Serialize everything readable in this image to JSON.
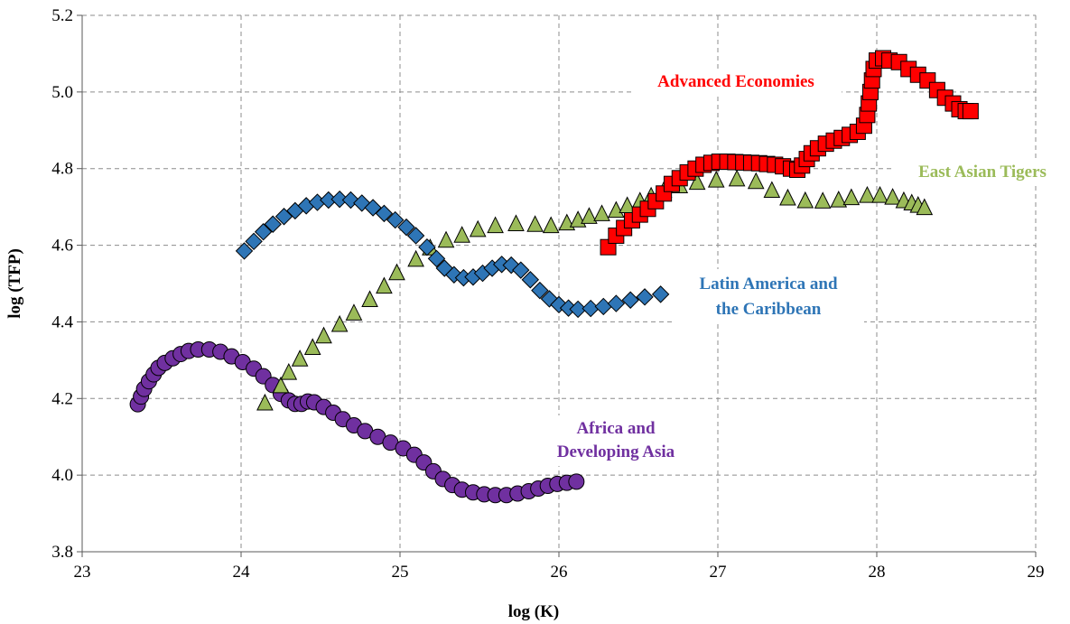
{
  "chart_data": {
    "type": "scatter",
    "title": "",
    "xlabel": "log (K)",
    "ylabel": "log (TFP)",
    "xlim": [
      23,
      29
    ],
    "ylim": [
      3.8,
      5.2
    ],
    "xticks": [
      "23",
      "24",
      "25",
      "26",
      "27",
      "28",
      "29"
    ],
    "yticks": [
      "3.8",
      "4.0",
      "4.2",
      "4.4",
      "4.6",
      "4.8",
      "5.0",
      "5.2"
    ],
    "grid": true,
    "legend": "none (series labelled directly on the plot)",
    "series": [
      {
        "name": "Advanced Economies",
        "label_lines": [
          "Advanced Economies"
        ],
        "marker": "square",
        "color": "#ff0000",
        "points": [
          [
            26.31,
            4.595
          ],
          [
            26.36,
            4.625
          ],
          [
            26.41,
            4.645
          ],
          [
            26.46,
            4.665
          ],
          [
            26.51,
            4.68
          ],
          [
            26.56,
            4.695
          ],
          [
            26.61,
            4.715
          ],
          [
            26.66,
            4.735
          ],
          [
            26.71,
            4.76
          ],
          [
            26.76,
            4.775
          ],
          [
            26.81,
            4.79
          ],
          [
            26.86,
            4.8
          ],
          [
            26.91,
            4.81
          ],
          [
            26.96,
            4.815
          ],
          [
            27.01,
            4.818
          ],
          [
            27.06,
            4.818
          ],
          [
            27.11,
            4.817
          ],
          [
            27.16,
            4.816
          ],
          [
            27.21,
            4.815
          ],
          [
            27.26,
            4.814
          ],
          [
            27.31,
            4.812
          ],
          [
            27.36,
            4.81
          ],
          [
            27.41,
            4.806
          ],
          [
            27.46,
            4.8
          ],
          [
            27.5,
            4.797
          ],
          [
            27.53,
            4.808
          ],
          [
            27.56,
            4.825
          ],
          [
            27.59,
            4.84
          ],
          [
            27.63,
            4.853
          ],
          [
            27.68,
            4.865
          ],
          [
            27.73,
            4.873
          ],
          [
            27.78,
            4.88
          ],
          [
            27.83,
            4.888
          ],
          [
            27.88,
            4.896
          ],
          [
            27.92,
            4.912
          ],
          [
            27.94,
            4.94
          ],
          [
            27.95,
            4.97
          ],
          [
            27.96,
            5.0
          ],
          [
            27.97,
            5.03
          ],
          [
            27.98,
            5.06
          ],
          [
            28.0,
            5.082
          ],
          [
            28.04,
            5.088
          ],
          [
            28.08,
            5.082
          ],
          [
            28.14,
            5.078
          ],
          [
            28.2,
            5.06
          ],
          [
            28.26,
            5.045
          ],
          [
            28.32,
            5.03
          ],
          [
            28.38,
            5.005
          ],
          [
            28.43,
            4.985
          ],
          [
            28.48,
            4.97
          ],
          [
            28.52,
            4.955
          ],
          [
            28.56,
            4.95
          ],
          [
            28.59,
            4.95
          ]
        ]
      },
      {
        "name": "East Asian Tigers",
        "label_lines": [
          "East Asian Tigers"
        ],
        "marker": "triangle",
        "color": "#9bbb59",
        "points": [
          [
            24.15,
            4.19
          ],
          [
            24.25,
            4.235
          ],
          [
            24.3,
            4.27
          ],
          [
            24.37,
            4.305
          ],
          [
            24.45,
            4.335
          ],
          [
            24.52,
            4.365
          ],
          [
            24.62,
            4.395
          ],
          [
            24.71,
            4.425
          ],
          [
            24.81,
            4.46
          ],
          [
            24.9,
            4.495
          ],
          [
            24.98,
            4.53
          ],
          [
            25.1,
            4.565
          ],
          [
            25.19,
            4.595
          ],
          [
            25.29,
            4.615
          ],
          [
            25.39,
            4.628
          ],
          [
            25.49,
            4.643
          ],
          [
            25.6,
            4.653
          ],
          [
            25.73,
            4.658
          ],
          [
            25.85,
            4.656
          ],
          [
            25.95,
            4.653
          ],
          [
            26.05,
            4.66
          ],
          [
            26.12,
            4.668
          ],
          [
            26.19,
            4.677
          ],
          [
            26.27,
            4.684
          ],
          [
            26.36,
            4.693
          ],
          [
            26.43,
            4.705
          ],
          [
            26.51,
            4.717
          ],
          [
            26.58,
            4.73
          ],
          [
            26.66,
            4.745
          ],
          [
            26.76,
            4.757
          ],
          [
            26.87,
            4.766
          ],
          [
            26.99,
            4.772
          ],
          [
            27.12,
            4.775
          ],
          [
            27.24,
            4.768
          ],
          [
            27.34,
            4.745
          ],
          [
            27.44,
            4.725
          ],
          [
            27.55,
            4.718
          ],
          [
            27.66,
            4.717
          ],
          [
            27.76,
            4.72
          ],
          [
            27.84,
            4.726
          ],
          [
            27.94,
            4.732
          ],
          [
            28.02,
            4.732
          ],
          [
            28.1,
            4.727
          ],
          [
            28.17,
            4.718
          ],
          [
            28.22,
            4.712
          ],
          [
            28.26,
            4.706
          ],
          [
            28.3,
            4.7
          ]
        ]
      },
      {
        "name": "Latin America and the Caribbean",
        "label_lines": [
          "Latin America and",
          "the Caribbean"
        ],
        "marker": "diamond",
        "color": "#2e75b6",
        "points": [
          [
            24.02,
            4.585
          ],
          [
            24.08,
            4.61
          ],
          [
            24.14,
            4.635
          ],
          [
            24.2,
            4.655
          ],
          [
            24.27,
            4.675
          ],
          [
            24.34,
            4.69
          ],
          [
            24.41,
            4.703
          ],
          [
            24.48,
            4.712
          ],
          [
            24.55,
            4.718
          ],
          [
            24.62,
            4.72
          ],
          [
            24.69,
            4.718
          ],
          [
            24.76,
            4.71
          ],
          [
            24.83,
            4.698
          ],
          [
            24.9,
            4.683
          ],
          [
            24.97,
            4.666
          ],
          [
            25.04,
            4.647
          ],
          [
            25.1,
            4.625
          ],
          [
            25.17,
            4.595
          ],
          [
            25.23,
            4.565
          ],
          [
            25.28,
            4.54
          ],
          [
            25.34,
            4.523
          ],
          [
            25.4,
            4.515
          ],
          [
            25.46,
            4.517
          ],
          [
            25.52,
            4.527
          ],
          [
            25.58,
            4.54
          ],
          [
            25.64,
            4.55
          ],
          [
            25.7,
            4.548
          ],
          [
            25.76,
            4.535
          ],
          [
            25.82,
            4.51
          ],
          [
            25.88,
            4.482
          ],
          [
            25.94,
            4.46
          ],
          [
            26.0,
            4.445
          ],
          [
            26.06,
            4.436
          ],
          [
            26.12,
            4.433
          ],
          [
            26.2,
            4.435
          ],
          [
            26.28,
            4.44
          ],
          [
            26.36,
            4.448
          ],
          [
            26.45,
            4.457
          ],
          [
            26.54,
            4.465
          ],
          [
            26.64,
            4.472
          ]
        ]
      },
      {
        "name": "Africa and Developing Asia",
        "label_lines": [
          "Africa and",
          "Developing Asia"
        ],
        "marker": "circle",
        "color": "#7030a0",
        "points": [
          [
            23.35,
            4.185
          ],
          [
            23.37,
            4.205
          ],
          [
            23.39,
            4.225
          ],
          [
            23.42,
            4.245
          ],
          [
            23.45,
            4.263
          ],
          [
            23.48,
            4.28
          ],
          [
            23.52,
            4.293
          ],
          [
            23.57,
            4.305
          ],
          [
            23.62,
            4.316
          ],
          [
            23.67,
            4.324
          ],
          [
            23.73,
            4.328
          ],
          [
            23.8,
            4.328
          ],
          [
            23.87,
            4.322
          ],
          [
            23.94,
            4.31
          ],
          [
            24.01,
            4.295
          ],
          [
            24.08,
            4.278
          ],
          [
            24.14,
            4.258
          ],
          [
            24.2,
            4.235
          ],
          [
            24.25,
            4.212
          ],
          [
            24.3,
            4.195
          ],
          [
            24.34,
            4.186
          ],
          [
            24.38,
            4.186
          ],
          [
            24.42,
            4.192
          ],
          [
            24.46,
            4.19
          ],
          [
            24.52,
            4.178
          ],
          [
            24.58,
            4.163
          ],
          [
            24.64,
            4.146
          ],
          [
            24.71,
            4.13
          ],
          [
            24.78,
            4.115
          ],
          [
            24.86,
            4.1
          ],
          [
            24.94,
            4.085
          ],
          [
            25.02,
            4.07
          ],
          [
            25.09,
            4.053
          ],
          [
            25.15,
            4.033
          ],
          [
            25.21,
            4.01
          ],
          [
            25.27,
            3.99
          ],
          [
            25.33,
            3.974
          ],
          [
            25.39,
            3.962
          ],
          [
            25.46,
            3.955
          ],
          [
            25.53,
            3.95
          ],
          [
            25.6,
            3.948
          ],
          [
            25.67,
            3.948
          ],
          [
            25.74,
            3.952
          ],
          [
            25.81,
            3.958
          ],
          [
            25.87,
            3.965
          ],
          [
            25.93,
            3.972
          ],
          [
            25.99,
            3.977
          ],
          [
            26.05,
            3.98
          ],
          [
            26.11,
            3.983
          ]
        ]
      }
    ]
  }
}
